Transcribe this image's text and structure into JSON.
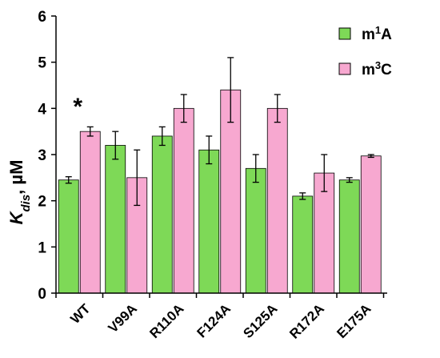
{
  "chart_data": {
    "type": "bar",
    "ylabel": {
      "main": "K",
      "sub": "dis",
      "unit": ", µM"
    },
    "ylim": [
      0,
      6
    ],
    "yticks": [
      0,
      1,
      2,
      3,
      4,
      5,
      6
    ],
    "categories": [
      "WT",
      "V99A",
      "R110A",
      "F124A",
      "S125A",
      "R172A",
      "E175A"
    ],
    "series": [
      {
        "name_base": "m",
        "name_sup": "1",
        "name_end": "A",
        "color": "#7ed957",
        "values": [
          2.45,
          3.2,
          3.4,
          3.1,
          2.7,
          2.1,
          2.45
        ],
        "errors": [
          0.07,
          0.3,
          0.2,
          0.3,
          0.3,
          0.07,
          0.05
        ]
      },
      {
        "name_base": "m",
        "name_sup": "3",
        "name_end": "C",
        "color": "#f7a8d0",
        "values": [
          3.5,
          2.5,
          4.0,
          4.4,
          4.0,
          2.6,
          2.97
        ],
        "errors": [
          0.1,
          0.6,
          0.3,
          0.7,
          0.3,
          0.4,
          0.03
        ]
      }
    ],
    "annotations": [
      {
        "text": "*",
        "category": "WT"
      }
    ],
    "legend": "top-right",
    "grid": false
  }
}
